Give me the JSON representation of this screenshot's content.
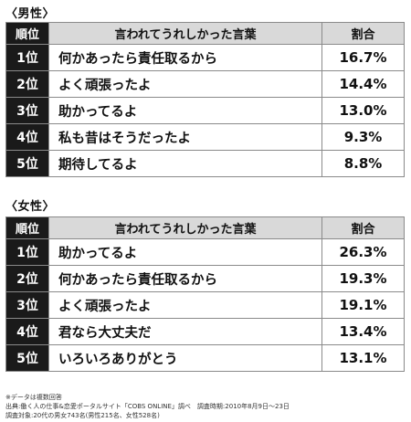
{
  "male": {
    "title": "〈男性〉",
    "headers": {
      "rank": "順位",
      "phrase": "言われてうれしかった言葉",
      "pct": "割合"
    },
    "rows": [
      {
        "rank": "1位",
        "phrase": "何かあったら責任取るから",
        "pct": "16.7%"
      },
      {
        "rank": "2位",
        "phrase": "よく頑張ったよ",
        "pct": "14.4%"
      },
      {
        "rank": "3位",
        "phrase": "助かってるよ",
        "pct": "13.0%"
      },
      {
        "rank": "4位",
        "phrase": "私も昔はそうだったよ",
        "pct": "9.3%"
      },
      {
        "rank": "5位",
        "phrase": "期待してるよ",
        "pct": "8.8%"
      }
    ]
  },
  "female": {
    "title": "〈女性〉",
    "headers": {
      "rank": "順位",
      "phrase": "言われてうれしかった言葉",
      "pct": "割合"
    },
    "rows": [
      {
        "rank": "1位",
        "phrase": "助かってるよ",
        "pct": "26.3%"
      },
      {
        "rank": "2位",
        "phrase": "何かあったら責任取るから",
        "pct": "19.3%"
      },
      {
        "rank": "3位",
        "phrase": "よく頑張ったよ",
        "pct": "19.1%"
      },
      {
        "rank": "4位",
        "phrase": "君なら大丈夫だ",
        "pct": "13.4%"
      },
      {
        "rank": "5位",
        "phrase": "いろいろありがとう",
        "pct": "13.1%"
      }
    ]
  },
  "notes": [
    "※データは複数回答",
    "出典:働く人の仕事&恋愛ポータルサイト「COBS ONLINE」調べ　調査時期:2010年8月9日～23日",
    "調査対象:20代の男女743名(男性215名、女性528名)"
  ]
}
